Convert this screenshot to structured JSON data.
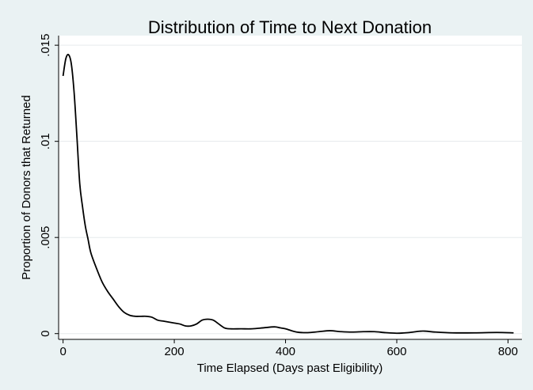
{
  "chart_data": {
    "type": "line",
    "title": "Distribution of Time to Next Donation",
    "xlabel": "Time Elapsed (Days past Eligibility)",
    "ylabel": "Proportion of Donors that Returned",
    "xlim": [
      -8,
      825
    ],
    "ylim": [
      -0.0003,
      0.0155
    ],
    "x_ticks": [
      {
        "value": 0,
        "label": "0"
      },
      {
        "value": 200,
        "label": "200"
      },
      {
        "value": 400,
        "label": "400"
      },
      {
        "value": 600,
        "label": "600"
      },
      {
        "value": 800,
        "label": "800"
      }
    ],
    "y_ticks": [
      {
        "value": 0,
        "label": "0"
      },
      {
        "value": 0.005,
        "label": ".005"
      },
      {
        "value": 0.01,
        "label": ".01"
      },
      {
        "value": 0.015,
        "label": ".015"
      }
    ],
    "grid": "horizontal",
    "line_color": "#000000",
    "series": [
      {
        "x": [
          0,
          5,
          10,
          15,
          20,
          25,
          30,
          35,
          40,
          45,
          50,
          60,
          70,
          80,
          90,
          100,
          110,
          120,
          130,
          140,
          150,
          160,
          170,
          180,
          190,
          200,
          210,
          220,
          230,
          240,
          250,
          260,
          270,
          280,
          290,
          300,
          320,
          340,
          360,
          380,
          390,
          400,
          420,
          440,
          460,
          480,
          500,
          520,
          540,
          560,
          580,
          600,
          620,
          640,
          650,
          670,
          700,
          740,
          780,
          810
        ],
        "y": [
          0.0134,
          0.0143,
          0.0145,
          0.014,
          0.0125,
          0.0102,
          0.0078,
          0.0066,
          0.0056,
          0.0049,
          0.0042,
          0.0034,
          0.0027,
          0.0022,
          0.0018,
          0.0014,
          0.0011,
          0.00095,
          0.0009,
          0.0009,
          0.0009,
          0.00085,
          0.0007,
          0.00065,
          0.0006,
          0.00055,
          0.0005,
          0.0004,
          0.0004,
          0.0005,
          0.0007,
          0.00075,
          0.0007,
          0.0005,
          0.0003,
          0.00025,
          0.00025,
          0.00025,
          0.0003,
          0.00035,
          0.0003,
          0.00025,
          8e-05,
          5e-05,
          0.0001,
          0.00015,
          0.0001,
          8e-05,
          0.0001,
          0.0001,
          5e-05,
          2e-05,
          5e-05,
          0.00012,
          0.00013,
          8e-05,
          4e-05,
          4e-05,
          6e-05,
          4e-05
        ]
      }
    ]
  }
}
